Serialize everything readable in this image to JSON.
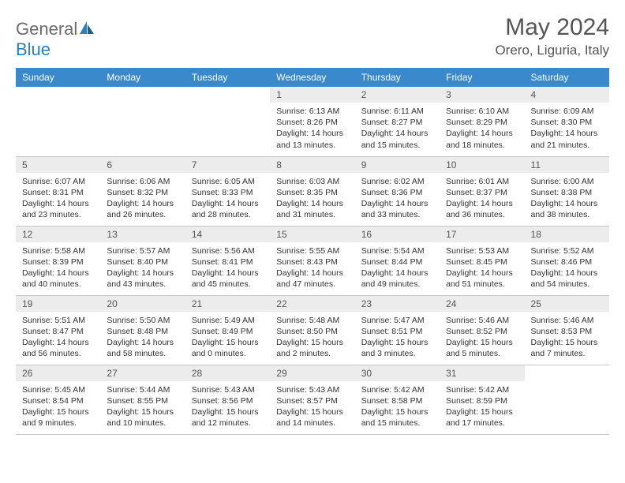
{
  "brand": {
    "part1": "General",
    "part2": "Blue"
  },
  "title": "May 2024",
  "location": "Orero, Liguria, Italy",
  "colors": {
    "header_bg": "#3a89cc",
    "header_text": "#ffffff",
    "daynum_bg": "#ececec",
    "text": "#333333",
    "title_text": "#555555",
    "border": "#c8c8c8",
    "logo_gray": "#6b6b6b",
    "logo_blue": "#2a7fbf"
  },
  "weekdays": [
    "Sunday",
    "Monday",
    "Tuesday",
    "Wednesday",
    "Thursday",
    "Friday",
    "Saturday"
  ],
  "weeks": [
    [
      {
        "n": "",
        "t": ""
      },
      {
        "n": "",
        "t": ""
      },
      {
        "n": "",
        "t": ""
      },
      {
        "n": "1",
        "t": "Sunrise: 6:13 AM\nSunset: 8:26 PM\nDaylight: 14 hours and 13 minutes."
      },
      {
        "n": "2",
        "t": "Sunrise: 6:11 AM\nSunset: 8:27 PM\nDaylight: 14 hours and 15 minutes."
      },
      {
        "n": "3",
        "t": "Sunrise: 6:10 AM\nSunset: 8:29 PM\nDaylight: 14 hours and 18 minutes."
      },
      {
        "n": "4",
        "t": "Sunrise: 6:09 AM\nSunset: 8:30 PM\nDaylight: 14 hours and 21 minutes."
      }
    ],
    [
      {
        "n": "5",
        "t": "Sunrise: 6:07 AM\nSunset: 8:31 PM\nDaylight: 14 hours and 23 minutes."
      },
      {
        "n": "6",
        "t": "Sunrise: 6:06 AM\nSunset: 8:32 PM\nDaylight: 14 hours and 26 minutes."
      },
      {
        "n": "7",
        "t": "Sunrise: 6:05 AM\nSunset: 8:33 PM\nDaylight: 14 hours and 28 minutes."
      },
      {
        "n": "8",
        "t": "Sunrise: 6:03 AM\nSunset: 8:35 PM\nDaylight: 14 hours and 31 minutes."
      },
      {
        "n": "9",
        "t": "Sunrise: 6:02 AM\nSunset: 8:36 PM\nDaylight: 14 hours and 33 minutes."
      },
      {
        "n": "10",
        "t": "Sunrise: 6:01 AM\nSunset: 8:37 PM\nDaylight: 14 hours and 36 minutes."
      },
      {
        "n": "11",
        "t": "Sunrise: 6:00 AM\nSunset: 8:38 PM\nDaylight: 14 hours and 38 minutes."
      }
    ],
    [
      {
        "n": "12",
        "t": "Sunrise: 5:58 AM\nSunset: 8:39 PM\nDaylight: 14 hours and 40 minutes."
      },
      {
        "n": "13",
        "t": "Sunrise: 5:57 AM\nSunset: 8:40 PM\nDaylight: 14 hours and 43 minutes."
      },
      {
        "n": "14",
        "t": "Sunrise: 5:56 AM\nSunset: 8:41 PM\nDaylight: 14 hours and 45 minutes."
      },
      {
        "n": "15",
        "t": "Sunrise: 5:55 AM\nSunset: 8:43 PM\nDaylight: 14 hours and 47 minutes."
      },
      {
        "n": "16",
        "t": "Sunrise: 5:54 AM\nSunset: 8:44 PM\nDaylight: 14 hours and 49 minutes."
      },
      {
        "n": "17",
        "t": "Sunrise: 5:53 AM\nSunset: 8:45 PM\nDaylight: 14 hours and 51 minutes."
      },
      {
        "n": "18",
        "t": "Sunrise: 5:52 AM\nSunset: 8:46 PM\nDaylight: 14 hours and 54 minutes."
      }
    ],
    [
      {
        "n": "19",
        "t": "Sunrise: 5:51 AM\nSunset: 8:47 PM\nDaylight: 14 hours and 56 minutes."
      },
      {
        "n": "20",
        "t": "Sunrise: 5:50 AM\nSunset: 8:48 PM\nDaylight: 14 hours and 58 minutes."
      },
      {
        "n": "21",
        "t": "Sunrise: 5:49 AM\nSunset: 8:49 PM\nDaylight: 15 hours and 0 minutes."
      },
      {
        "n": "22",
        "t": "Sunrise: 5:48 AM\nSunset: 8:50 PM\nDaylight: 15 hours and 2 minutes."
      },
      {
        "n": "23",
        "t": "Sunrise: 5:47 AM\nSunset: 8:51 PM\nDaylight: 15 hours and 3 minutes."
      },
      {
        "n": "24",
        "t": "Sunrise: 5:46 AM\nSunset: 8:52 PM\nDaylight: 15 hours and 5 minutes."
      },
      {
        "n": "25",
        "t": "Sunrise: 5:46 AM\nSunset: 8:53 PM\nDaylight: 15 hours and 7 minutes."
      }
    ],
    [
      {
        "n": "26",
        "t": "Sunrise: 5:45 AM\nSunset: 8:54 PM\nDaylight: 15 hours and 9 minutes."
      },
      {
        "n": "27",
        "t": "Sunrise: 5:44 AM\nSunset: 8:55 PM\nDaylight: 15 hours and 10 minutes."
      },
      {
        "n": "28",
        "t": "Sunrise: 5:43 AM\nSunset: 8:56 PM\nDaylight: 15 hours and 12 minutes."
      },
      {
        "n": "29",
        "t": "Sunrise: 5:43 AM\nSunset: 8:57 PM\nDaylight: 15 hours and 14 minutes."
      },
      {
        "n": "30",
        "t": "Sunrise: 5:42 AM\nSunset: 8:58 PM\nDaylight: 15 hours and 15 minutes."
      },
      {
        "n": "31",
        "t": "Sunrise: 5:42 AM\nSunset: 8:59 PM\nDaylight: 15 hours and 17 minutes."
      },
      {
        "n": "",
        "t": ""
      }
    ]
  ]
}
